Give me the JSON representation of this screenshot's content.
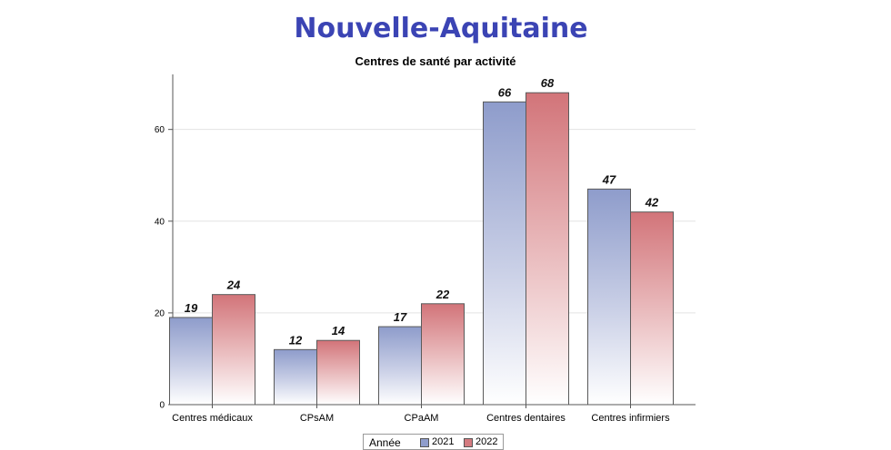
{
  "title": "Nouvelle-Aquitaine",
  "chart_data": {
    "type": "bar",
    "title": "Centres de santé par activité",
    "categories": [
      "Centres médicaux",
      "CPsAM",
      "CPaAM",
      "Centres dentaires",
      "Centres infirmiers"
    ],
    "series": [
      {
        "name": "2021",
        "values": [
          19,
          12,
          17,
          66,
          47
        ],
        "color": "#8f9dcc"
      },
      {
        "name": "2022",
        "values": [
          24,
          14,
          22,
          68,
          42
        ],
        "color": "#d47b80"
      }
    ],
    "xlabel": "",
    "ylabel": "",
    "ylim": [
      0,
      72
    ],
    "yticks": [
      0,
      20,
      40,
      60
    ],
    "grid": true,
    "data_labels": true,
    "legend": {
      "title": "Année",
      "position": "bottom"
    }
  }
}
